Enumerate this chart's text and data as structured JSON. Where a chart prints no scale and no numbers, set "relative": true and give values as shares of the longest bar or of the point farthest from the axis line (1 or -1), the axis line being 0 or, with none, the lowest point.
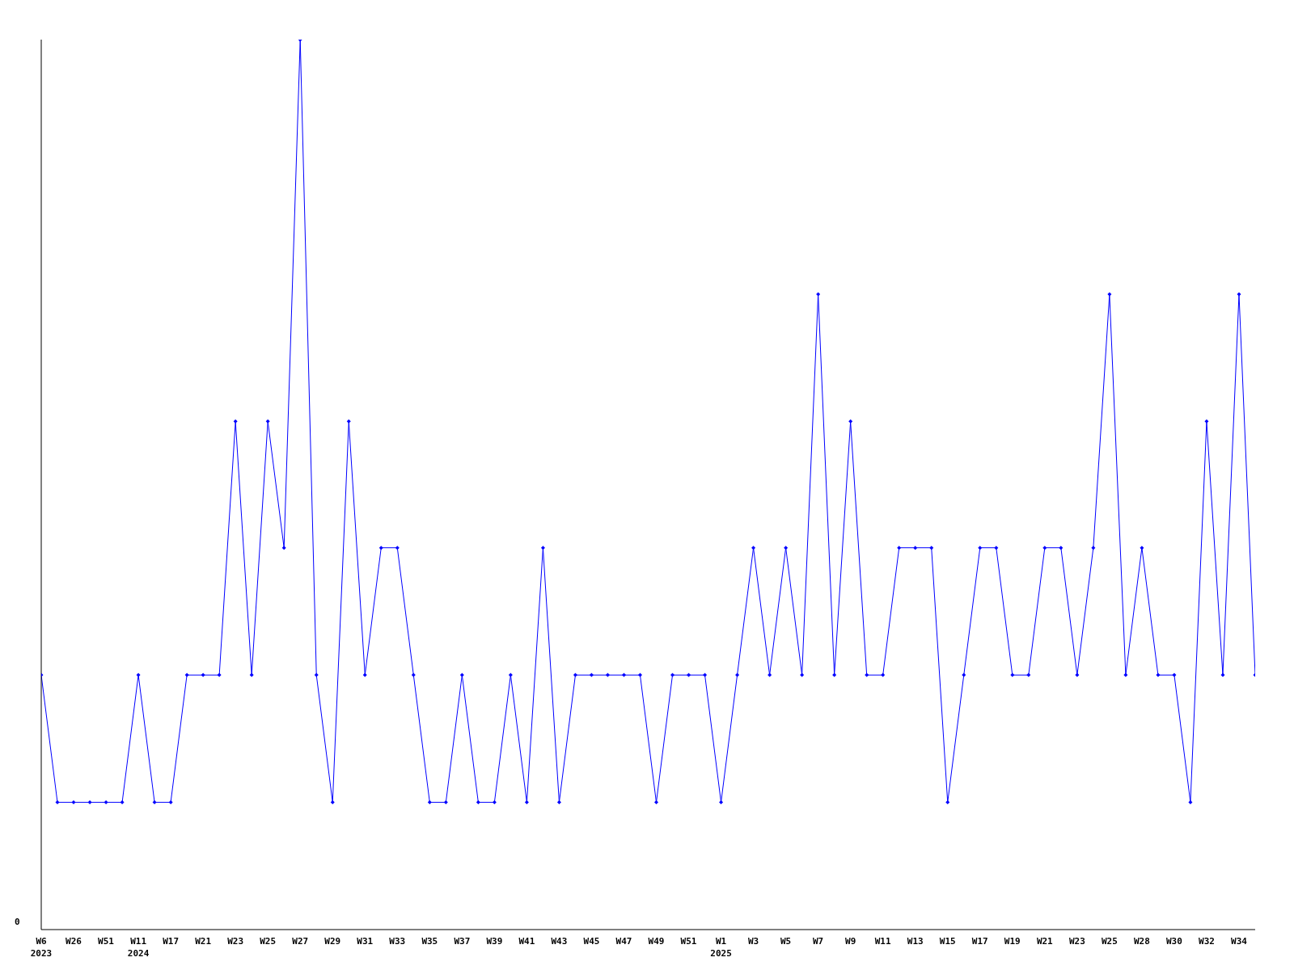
{
  "chart_data": {
    "type": "line",
    "relative": true,
    "marker": "diamond",
    "grid": false,
    "legend": false,
    "annotations": [
      "0"
    ],
    "categories": [
      "W6\n2023",
      null,
      "W26",
      null,
      "W51",
      null,
      "W11\n2024",
      null,
      "W17",
      null,
      "W21",
      null,
      "W23",
      null,
      "W25",
      null,
      "W27",
      null,
      "W29",
      null,
      "W31",
      null,
      "W33",
      null,
      "W35",
      null,
      "W37",
      null,
      "W39",
      null,
      "W41",
      null,
      "W43",
      null,
      "W45",
      null,
      "W47",
      null,
      "W49",
      null,
      "W51",
      null,
      "W1\n2025",
      null,
      "W3",
      null,
      "W5",
      null,
      "W7",
      null,
      "W9",
      null,
      "W11",
      null,
      "W13",
      null,
      "W15",
      null,
      "W17",
      null,
      "W19",
      null,
      "W21",
      null,
      "W23",
      null,
      "W25",
      null,
      "W28",
      null,
      "W30",
      null,
      "W32",
      null,
      "W34",
      null
    ],
    "series": [
      {
        "color": "#0000ff",
        "values": [
          0.286,
          0.143,
          0.143,
          0.143,
          0.143,
          0.143,
          0.286,
          0.143,
          0.143,
          0.286,
          0.286,
          0.286,
          0.571,
          0.286,
          0.571,
          0.429,
          1,
          0.286,
          0.143,
          0.571,
          0.286,
          0.429,
          0.429,
          0.286,
          0.143,
          0.143,
          0.286,
          0.143,
          0.143,
          0.286,
          0.143,
          0.429,
          0.143,
          0.286,
          0.286,
          0.286,
          0.286,
          0.286,
          0.143,
          0.286,
          0.286,
          0.286,
          0.143,
          0.286,
          0.429,
          0.286,
          0.429,
          0.286,
          0.714,
          0.286,
          0.571,
          0.286,
          0.286,
          0.429,
          0.429,
          0.429,
          0.143,
          0.286,
          0.429,
          0.429,
          0.286,
          0.286,
          0.429,
          0.429,
          0.286,
          0.429,
          0.714,
          0.286,
          0.429,
          0.286,
          0.286,
          0.143,
          0.571,
          0.286,
          0.714,
          0.286
        ]
      }
    ]
  }
}
